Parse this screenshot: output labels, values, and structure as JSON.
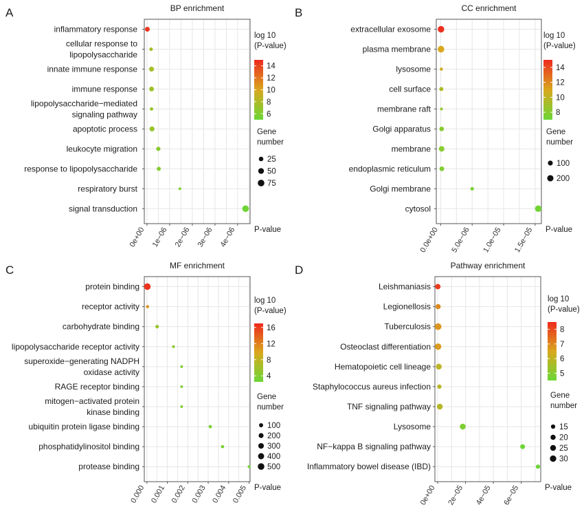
{
  "chart_data": [
    {
      "type": "scatter",
      "panel": "A",
      "title": "BP enrichment",
      "xlabel": "P-value",
      "categories": [
        "inflammatory response",
        "cellular response to lipopolysaccharide",
        "innate immune response",
        "immune response",
        "lipopolysaccharide-mediated signaling pathway",
        "apoptotic process",
        "leukocyte migration",
        "response to lipopolysaccharide",
        "respiratory burst",
        "signal transduction"
      ],
      "category_lines": [
        [
          "inflammatory response"
        ],
        [
          "cellular response to",
          "lipopolysaccharide"
        ],
        [
          "innate immune response"
        ],
        [
          "immune response"
        ],
        [
          "lipopolysaccharide−mediated",
          "signaling pathway"
        ],
        [
          "apoptotic process"
        ],
        [
          "leukocyte migration"
        ],
        [
          "response to lipopolysaccharide"
        ],
        [
          "respiratory burst"
        ],
        [
          "signal transduction"
        ]
      ],
      "x_values": [
        1.5e-08,
        1.8e-07,
        2e-07,
        2e-07,
        2e-07,
        2.2e-07,
        5e-07,
        5.2e-07,
        1.45e-06,
        4.35e-06
      ],
      "log10_p": [
        14.5,
        7.8,
        7.5,
        7.3,
        7.0,
        7.0,
        6.3,
        6.2,
        5.8,
        5.2
      ],
      "gene_number": [
        30,
        12,
        32,
        30,
        10,
        34,
        20,
        18,
        6,
        75
      ],
      "xlim": [
        -1.2e-07,
        4.55e-06
      ],
      "xticks": [
        0,
        1e-06,
        2e-06,
        3e-06,
        4e-06
      ],
      "xtick_labels": [
        "0e+00",
        "1e−06",
        "2e−06",
        "3e−06",
        "4e−06"
      ],
      "color_legend": {
        "title": [
          "log 10",
          "(P-value)"
        ],
        "min": 5,
        "max": 15,
        "ticks": [
          14,
          12,
          10,
          8,
          6
        ]
      },
      "size_legend": {
        "title": [
          "Gene",
          "number"
        ],
        "values": [
          25,
          50,
          75
        ],
        "min": 5,
        "max": 75
      }
    },
    {
      "type": "scatter",
      "panel": "B",
      "title": "CC enrichment",
      "xlabel": "P-value",
      "categories": [
        "extracellular exosome",
        "plasma membrane",
        "lysosome",
        "cell surface",
        "membrane raft",
        "Golgi apparatus",
        "membrane",
        "endoplasmic reticulum",
        "Golgi membrane",
        "cytosol"
      ],
      "category_lines": [
        [
          "extracellular exosome"
        ],
        [
          "plasma membrane"
        ],
        [
          "lysosome"
        ],
        [
          "cell surface"
        ],
        [
          "membrane raft"
        ],
        [
          "Golgi apparatus"
        ],
        [
          "membrane"
        ],
        [
          "endoplasmic reticulum"
        ],
        [
          "Golgi membrane"
        ],
        [
          "cytosol"
        ]
      ],
      "x_values": [
        5e-08,
        5e-08,
        1e-07,
        1e-07,
        1.2e-07,
        1.5e-07,
        1.5e-07,
        1.8e-07,
        5e-06,
        1.55e-05
      ],
      "log10_p": [
        14.8,
        11.0,
        10.5,
        9.5,
        8.5,
        8.0,
        8.0,
        7.8,
        7.5,
        7.2
      ],
      "gene_number": [
        220,
        230,
        30,
        60,
        25,
        80,
        140,
        90,
        40,
        220
      ],
      "xlim": [
        -7e-07,
        1.6e-05
      ],
      "xticks": [
        0,
        5e-06,
        1e-05,
        1.5e-05
      ],
      "xtick_labels": [
        "0.0e+00",
        "5.0e−06",
        "1.0e−05",
        "1.5e−05"
      ],
      "color_legend": {
        "title": [
          "log 10",
          "(P-value)"
        ],
        "min": 7,
        "max": 15,
        "ticks": [
          14,
          12,
          10,
          8
        ]
      },
      "size_legend": {
        "title": [
          "Gene",
          "number"
        ],
        "values": [
          100,
          200
        ],
        "min": 20,
        "max": 230
      }
    },
    {
      "type": "scatter",
      "panel": "C",
      "title": "MF enrichment",
      "xlabel": "P-value",
      "categories": [
        "protein binding",
        "receptor activity",
        "carbohydrate binding",
        "lipopolysaccharide receptor activity",
        "superoxide-generating NADPH oxidase activity",
        "RAGE receptor binding",
        "mitogen-activated protein kinase binding",
        "ubiquitin protein ligase binding",
        "phosphatidylinositol binding",
        "protease binding"
      ],
      "category_lines": [
        [
          "protein binding"
        ],
        [
          "receptor activity"
        ],
        [
          "carbohydrate binding"
        ],
        [
          "lipopolysaccharide receptor activity"
        ],
        [
          "superoxide−generating NADPH",
          "oxidase activity"
        ],
        [
          "RAGE receptor binding"
        ],
        [
          "mitogen−activated protein",
          "kinase binding"
        ],
        [
          "ubiquitin protein ligase binding"
        ],
        [
          "phosphatidylinositol binding"
        ],
        [
          "protease binding"
        ]
      ],
      "x_values": [
        2e-05,
        3e-05,
        0.0005,
        0.0013,
        0.0017,
        0.0017,
        0.0017,
        0.0031,
        0.0037,
        0.005
      ],
      "log10_p": [
        16.5,
        11.0,
        5.5,
        4.5,
        4.0,
        4.0,
        4.0,
        3.5,
        3.3,
        3.0
      ],
      "gene_number": [
        500,
        30,
        60,
        20,
        15,
        15,
        15,
        40,
        35,
        20
      ],
      "xlim": [
        -0.00013,
        0.00505
      ],
      "xticks": [
        0,
        0.001,
        0.002,
        0.003,
        0.004,
        0.005
      ],
      "xtick_labels": [
        "0.000",
        "0.001",
        "0.002",
        "0.003",
        "0.004",
        "0.005"
      ],
      "color_legend": {
        "title": [
          "log 10",
          "(P-value)"
        ],
        "min": 2.5,
        "max": 17,
        "ticks": [
          16,
          12,
          8,
          4
        ]
      },
      "size_legend": {
        "title": [
          "Gene",
          "number"
        ],
        "values": [
          100,
          200,
          300,
          400,
          500
        ],
        "min": 10,
        "max": 500
      }
    },
    {
      "type": "scatter",
      "panel": "D",
      "title": "Pathway enrichment",
      "xlabel": "P-value",
      "categories": [
        "Leishmaniasis",
        "Legionellosis",
        "Tuberculosis",
        "Osteoclast differentiation",
        "Hematopoietic cell lineage",
        "Staphylococcus aureus infection",
        "TNF signaling pathway",
        "Lysosome",
        "NF-kappa B signaling pathway",
        "Inflammatory bowel disease (IBD)"
      ],
      "category_lines": [
        [
          "Leishmaniasis"
        ],
        [
          "Legionellosis"
        ],
        [
          "Tuberculosis"
        ],
        [
          "Osteoclast differentiation"
        ],
        [
          "Hematopoietic cell lineage"
        ],
        [
          "Staphylococcus aureus infection"
        ],
        [
          "TNF signaling pathway"
        ],
        [
          "Lysosome"
        ],
        [
          "NF−kappa B signaling pathway"
        ],
        [
          "Inflammatory bowel disease (IBD)"
        ]
      ],
      "x_values": [
        1e-07,
        3e-07,
        3e-07,
        3e-07,
        8e-07,
        1.2e-06,
        1.5e-06,
        1.8e-05,
        6.1e-05,
        7.2e-05
      ],
      "log10_p": [
        8.2,
        7.0,
        6.8,
        6.7,
        6.0,
        5.9,
        5.8,
        4.8,
        4.2,
        4.1
      ],
      "gene_number": [
        22,
        20,
        32,
        30,
        25,
        15,
        25,
        25,
        18,
        15
      ],
      "xlim": [
        -2e-06,
        7.4e-05
      ],
      "xticks": [
        0,
        2e-05,
        4e-05,
        6e-05
      ],
      "xtick_labels": [
        "0e+00",
        "2e−05",
        "4e−05",
        "6e−05"
      ],
      "color_legend": {
        "title": [
          "log 10",
          "(P-value)"
        ],
        "min": 4.5,
        "max": 8.5,
        "ticks": [
          8,
          7,
          6,
          5
        ]
      },
      "size_legend": {
        "title": [
          "Gene",
          "number"
        ],
        "values": [
          15,
          20,
          25,
          30
        ],
        "min": 10,
        "max": 32
      }
    }
  ]
}
